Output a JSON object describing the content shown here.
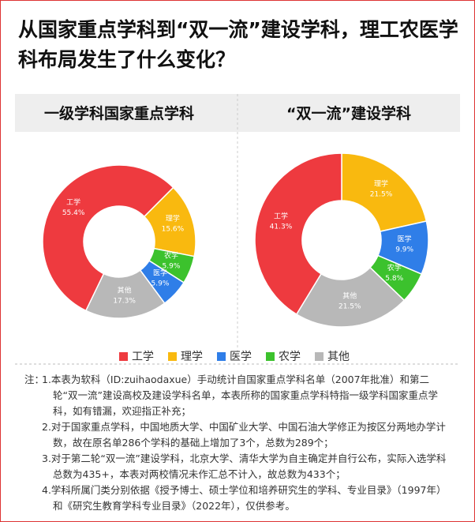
{
  "title": "从国家重点学科到“双一流”建设学科，理工农医学科布局发生了什么变化？",
  "chart_data": [
    {
      "type": "donut",
      "title": "一级学科国家重点学科",
      "categories": [
        "理学",
        "农学",
        "医学",
        "其他",
        "工学"
      ],
      "values": [
        15.6,
        5.9,
        5.9,
        17.3,
        55.4
      ],
      "value_labels": [
        "15.6%",
        "5.9%",
        "5.9%",
        "17.3%",
        "55.4%"
      ],
      "colors": [
        "#f9b90f",
        "#3cc22d",
        "#2f7ee8",
        "#b8b8b8",
        "#ee3a3f"
      ]
    },
    {
      "type": "donut",
      "title": "“双一流”建设学科",
      "categories": [
        "理学",
        "医学",
        "农学",
        "其他",
        "工学"
      ],
      "values": [
        21.5,
        9.9,
        5.8,
        21.5,
        41.3
      ],
      "value_labels": [
        "21.5%",
        "9.9%",
        "5.8%",
        "21.5%",
        "41.3%"
      ],
      "colors": [
        "#f9b90f",
        "#2f7ee8",
        "#3cc22d",
        "#b8b8b8",
        "#ee3a3f"
      ]
    }
  ],
  "legend": {
    "labels": [
      "工学",
      "理学",
      "医学",
      "农学",
      "其他"
    ],
    "colors": [
      "#ee3a3f",
      "#f9b90f",
      "#2f7ee8",
      "#3cc22d",
      "#b8b8b8"
    ]
  },
  "notes": {
    "prefix": "注：",
    "items": [
      "1.本表为软科（ID:zuihaodaxue）手动统计自国家重点学科名单（2007年批准）和第二轮“双一流”建设高校及建设学科名单，本表所称的国家重点学科特指一级学科国家重点学科，如有错漏，欢迎指正补充；",
      "2.对于国家重点学科，中国地质大学、中国矿业大学、中国石油大学修正为按区分两地办学计数，故在原名单286个学科的基础上增加了3个，总数为289个；",
      "3.对于第二轮“双一流”建设学科，北京大学、清华大学为自主确定并自行公布，实际入选学科总数为435+，本表对两校情况未作汇总不计入，故总数为433个；",
      "4.学科所属门类分别依据《授予博士、硕士学位和培养研究生的学科、专业目录》（1997年）和《研究生教育学科专业目录》（2022年），仅供参考。"
    ]
  }
}
